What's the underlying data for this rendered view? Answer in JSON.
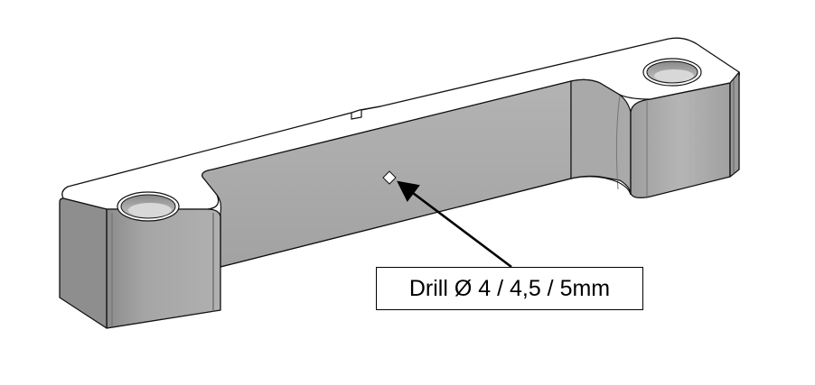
{
  "diagram": {
    "subject": "machined bracket bar with two counterbored mounting holes and a small marked point",
    "callout": {
      "text": "Drill Ø 4 / 4,5 / 5mm",
      "points_to": "drill-point-marker"
    },
    "colors": {
      "background": "#ffffff",
      "outline": "#111111",
      "top_face": "#ffffff",
      "side_face_light": "#b8b8b8",
      "side_face_mid": "#a6a6a6",
      "side_face_dark": "#8f8f8f",
      "hole_inner": "#9a9a9a"
    }
  }
}
